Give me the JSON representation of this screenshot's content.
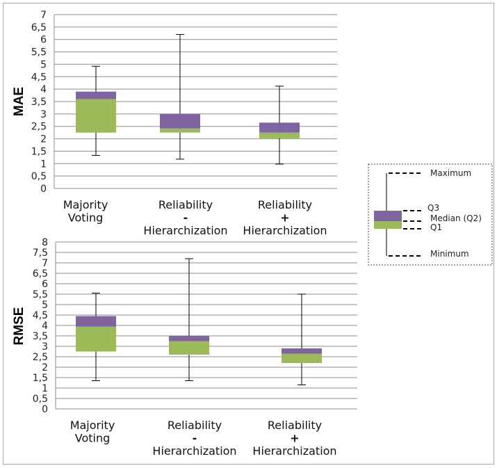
{
  "chart_data": [
    {
      "type": "box",
      "title": "",
      "ylabel": "MAE",
      "ylim": [
        0,
        7
      ],
      "ystep": 0.5,
      "tick_labels": [
        "0",
        "0,5",
        "1",
        "1,5",
        "2",
        "2,5",
        "3",
        "3,5",
        "4",
        "4,5",
        "5",
        "5,5",
        "6",
        "6,5",
        "7"
      ],
      "categories": [
        {
          "lines": [
            "Majority",
            "Voting"
          ],
          "min": 1.33,
          "q1": 2.25,
          "median": 3.6,
          "q3": 3.9,
          "max": 4.92
        },
        {
          "lines": [
            "Reliability",
            "-",
            "Hierarchization"
          ],
          "min": 1.18,
          "q1": 2.25,
          "median": 2.42,
          "q3": 3.0,
          "max": 6.2
        },
        {
          "lines": [
            "Reliability",
            "+",
            "Hierarchization"
          ],
          "min": 0.98,
          "q1": 2.02,
          "median": 2.25,
          "q3": 2.65,
          "max": 4.12
        }
      ]
    },
    {
      "type": "box",
      "title": "",
      "ylabel": "RMSE",
      "ylim": [
        0,
        8
      ],
      "ystep": 0.5,
      "tick_labels": [
        "0",
        "0,5",
        "1",
        "1,5",
        "2",
        "2,5",
        "3",
        "3,5",
        "4",
        "4,5",
        "5",
        "5,5",
        "6",
        "6,5",
        "7",
        "7,5",
        "8"
      ],
      "categories": [
        {
          "lines": [
            "Majority",
            "Voting"
          ],
          "min": 1.35,
          "q1": 2.75,
          "median": 3.95,
          "q3": 4.45,
          "max": 5.55
        },
        {
          "lines": [
            "Reliability",
            "-",
            "Hierarchization"
          ],
          "min": 1.35,
          "q1": 2.6,
          "median": 3.25,
          "q3": 3.5,
          "max": 7.2
        },
        {
          "lines": [
            "Reliability",
            "+",
            "Hierarchization"
          ],
          "min": 1.15,
          "q1": 2.2,
          "median": 2.65,
          "q3": 2.9,
          "max": 5.5
        }
      ]
    }
  ],
  "legend": {
    "maximum": "Maximum",
    "q3": "Q3",
    "median": "Median (Q2)",
    "q1": "Q1",
    "minimum": "Minimum"
  },
  "colors": {
    "upper_box": "#8064a2",
    "lower_box": "#9bbb59",
    "grid": "#8c8c8c",
    "whisker": "#000000"
  }
}
